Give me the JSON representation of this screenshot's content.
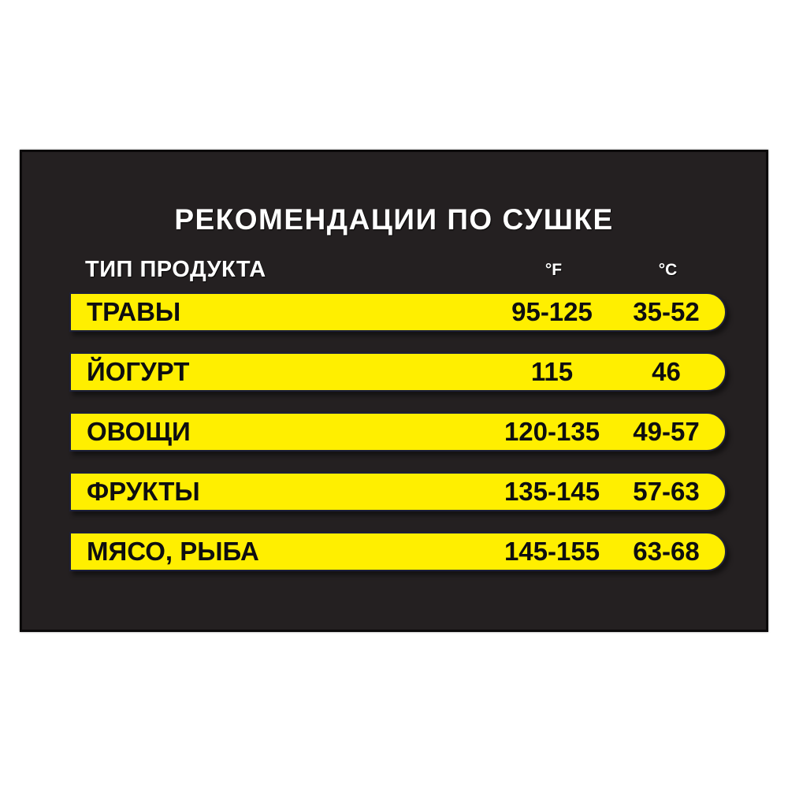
{
  "colors": {
    "page_background": "#ffffff",
    "panel_background": "#242021",
    "panel_border": "#0b090a",
    "bar_fill": "#ffef00",
    "bar_border": "#1d2038",
    "title_text": "#ffffff",
    "bar_text": "#0e0e10"
  },
  "chart_data": {
    "type": "table",
    "title": "РЕКОМЕНДАЦИИ ПО СУШКЕ",
    "columns": [
      "ТИП ПРОДУКТА",
      "°F",
      "°C"
    ],
    "rows": [
      [
        "ТРАВЫ",
        "95-125",
        "35-52"
      ],
      [
        "ЙОГУРТ",
        "115",
        "46"
      ],
      [
        "ОВОЩИ",
        "120-135",
        "49-57"
      ],
      [
        "ФРУКТЫ",
        "135-145",
        "57-63"
      ],
      [
        "МЯСО, РЫБА",
        "145-155",
        "63-68"
      ]
    ]
  }
}
